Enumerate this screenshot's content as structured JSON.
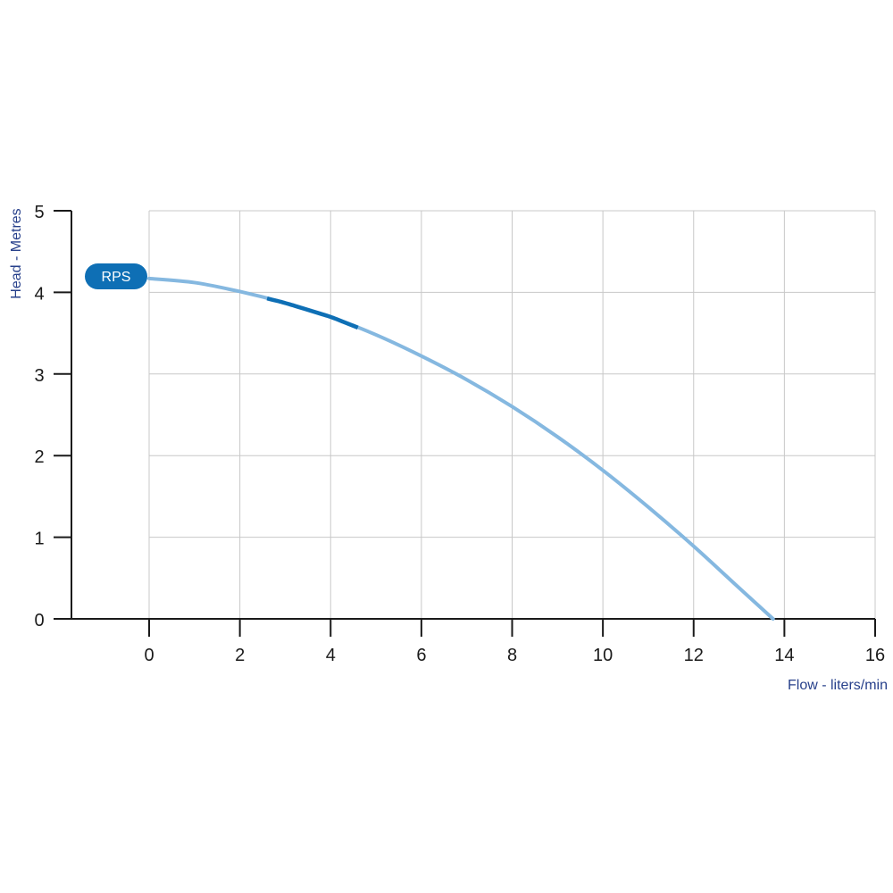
{
  "chart_data": {
    "type": "line",
    "xlabel": "Flow - liters/min",
    "ylabel": "Head - Metres",
    "xlim": [
      0,
      16
    ],
    "ylim": [
      0,
      5
    ],
    "x_ticks": [
      0,
      2,
      4,
      6,
      8,
      10,
      12,
      14,
      16
    ],
    "y_ticks": [
      0,
      1,
      2,
      3,
      4,
      5
    ],
    "grid": true,
    "colors": {
      "curve": "#85b8e0",
      "highlight": "#0e6fb5",
      "badge": "#0e6fb5",
      "grid": "#c8c8c8",
      "axis": "#1a1a1a",
      "axis_title": "#27408b"
    },
    "series": [
      {
        "name": "RPS",
        "x": [
          0,
          1,
          2,
          3,
          4,
          5,
          6,
          7,
          8,
          9,
          10,
          11,
          12,
          13,
          13.75
        ],
        "y": [
          4.17,
          4.12,
          4.01,
          3.87,
          3.7,
          3.48,
          3.22,
          2.93,
          2.6,
          2.23,
          1.82,
          1.37,
          0.89,
          0.38,
          0.0
        ],
        "highlight_range": [
          2.6,
          4.6
        ]
      }
    ]
  }
}
